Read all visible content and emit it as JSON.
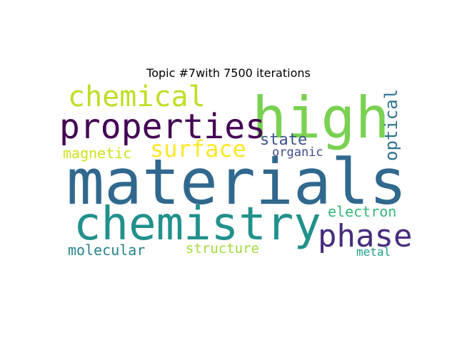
{
  "title": "Topic #7with 7500 iterations",
  "words": {
    "materials": {
      "text": "materials",
      "color": "#31688e"
    },
    "high": {
      "text": "high",
      "color": "#7ad151"
    },
    "chemistry": {
      "text": "chemistry",
      "color": "#21918c"
    },
    "properties": {
      "text": "properties",
      "color": "#440154"
    },
    "chemical": {
      "text": "chemical",
      "color": "#bddf26"
    },
    "phase": {
      "text": "phase",
      "color": "#472d7b"
    },
    "surface": {
      "text": "surface",
      "color": "#fde725"
    },
    "optical": {
      "text": "optical",
      "color": "#2c728e"
    },
    "state": {
      "text": "state",
      "color": "#3b528b"
    },
    "magnetic": {
      "text": "magnetic",
      "color": "#d0e11c"
    },
    "organic": {
      "text": "organic",
      "color": "#3e4a89"
    },
    "electron": {
      "text": "electron",
      "color": "#35b779"
    },
    "molecular": {
      "text": "molecular",
      "color": "#26828e"
    },
    "structure": {
      "text": "structure",
      "color": "#a0da39"
    },
    "metal": {
      "text": "metal",
      "color": "#1f9e89"
    }
  }
}
